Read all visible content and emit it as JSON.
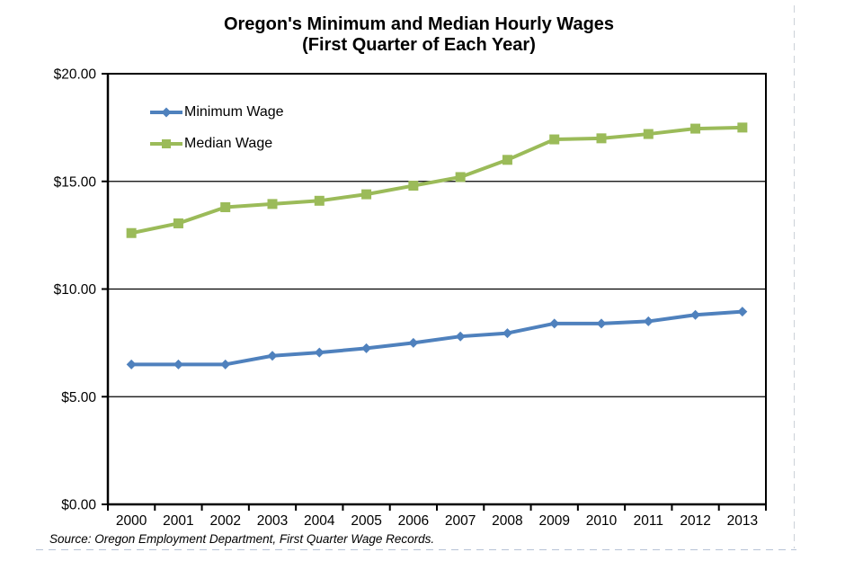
{
  "chart_data": {
    "type": "line",
    "title": "Oregon's Minimum and Median Hourly Wages",
    "subtitle": "(First Quarter of Each Year)",
    "categories": [
      "2000",
      "2001",
      "2002",
      "2003",
      "2004",
      "2005",
      "2006",
      "2007",
      "2008",
      "2009",
      "2010",
      "2011",
      "2012",
      "2013"
    ],
    "series": [
      {
        "name": "Minimum Wage",
        "color": "#4F81BD",
        "marker": "diamond",
        "values": [
          6.5,
          6.5,
          6.5,
          6.9,
          7.05,
          7.25,
          7.5,
          7.8,
          7.95,
          8.4,
          8.4,
          8.5,
          8.8,
          8.95
        ]
      },
      {
        "name": "Median Wage",
        "color": "#9BBB59",
        "marker": "square",
        "values": [
          12.6,
          13.05,
          13.8,
          13.95,
          14.1,
          14.4,
          14.8,
          15.2,
          16.0,
          16.95,
          17.0,
          17.2,
          17.45,
          17.5
        ]
      }
    ],
    "xlabel": "",
    "ylabel": "",
    "ylim": [
      0,
      20
    ],
    "y_ticks": [
      {
        "value": 0,
        "label": "$0.00"
      },
      {
        "value": 5,
        "label": "$5.00"
      },
      {
        "value": 10,
        "label": "$10.00"
      },
      {
        "value": 15,
        "label": "$15.00"
      },
      {
        "value": 20,
        "label": "$20.00"
      }
    ],
    "grid": true,
    "legend_position": "inside-top-left",
    "axis_color": "#000000",
    "plot_background": "#ffffff"
  },
  "source": "Source: Oregon Employment Department, First Quarter Wage Records."
}
